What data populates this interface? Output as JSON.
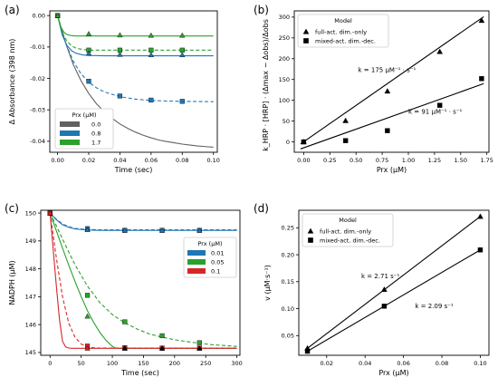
{
  "chart_data": [
    {
      "panel_label": "(a)",
      "type": "line",
      "xlabel": "Time (sec)",
      "ylabel": "Δ Absorbance (398 nm)",
      "xlim": [
        -0.005,
        0.1025
      ],
      "ylim": [
        -0.0435,
        0.0015
      ],
      "xticks": [
        "0.00",
        "0.02",
        "0.04",
        "0.06",
        "0.08",
        "0.10"
      ],
      "yticks": [
        "0.00",
        "-0.01",
        "-0.02",
        "-0.03",
        "-0.04"
      ],
      "legend": {
        "title": "Prx (μM)",
        "placement": "lower-left"
      },
      "series": [
        {
          "name": "0.0",
          "color": "#616161",
          "curve": {
            "x": [
              0,
              0.005,
              0.01,
              0.015,
              0.02,
              0.025,
              0.03,
              0.035,
              0.04,
              0.045,
              0.05,
              0.055,
              0.06,
              0.065,
              0.07,
              0.075,
              0.08,
              0.085,
              0.09,
              0.095,
              0.1
            ],
            "y": [
              0,
              -0.0085,
              -0.0155,
              -0.0207,
              -0.0248,
              -0.0281,
              -0.0306,
              -0.0327,
              -0.0345,
              -0.0359,
              -0.0371,
              -0.0381,
              -0.0389,
              -0.0396,
              -0.0401,
              -0.0405,
              -0.0409,
              -0.0412,
              -0.0415,
              -0.0417,
              -0.0419
            ]
          }
        },
        {
          "name": "0.8",
          "color": "#1f77b4",
          "curves": [
            {
              "dashed": false,
              "x": [
                0,
                0.003,
                0.006,
                0.009,
                0.012,
                0.016,
                0.02,
                0.03,
                0.05,
                0.1
              ],
              "y": [
                0,
                -0.0062,
                -0.0095,
                -0.0112,
                -0.012,
                -0.0125,
                -0.0127,
                -0.0128,
                -0.0128,
                -0.0128
              ]
            },
            {
              "dashed": true,
              "x": [
                0,
                0.005,
                0.01,
                0.015,
                0.02,
                0.025,
                0.03,
                0.04,
                0.05,
                0.06,
                0.07,
                0.08,
                0.1
              ],
              "y": [
                0,
                -0.0085,
                -0.0145,
                -0.0185,
                -0.0212,
                -0.023,
                -0.0243,
                -0.0258,
                -0.0266,
                -0.027,
                -0.0272,
                -0.0273,
                -0.0274
              ]
            }
          ],
          "markers": {
            "x": [
              0,
              0.02,
              0.04,
              0.06,
              0.08
            ],
            "y": [
              0,
              -0.0209,
              -0.0256,
              -0.0269,
              -0.0273
            ]
          }
        },
        {
          "name": "1.7",
          "color": "#2ca02c",
          "curves": [
            {
              "dashed": false,
              "x": [
                0,
                0.002,
                0.004,
                0.006,
                0.008,
                0.011,
                0.015,
                0.02,
                0.1
              ],
              "y": [
                0,
                -0.0035,
                -0.0053,
                -0.006,
                -0.0063,
                -0.0065,
                -0.0065,
                -0.0065,
                -0.0065
              ]
            },
            {
              "dashed": true,
              "x": [
                0,
                0.003,
                0.006,
                0.009,
                0.012,
                0.016,
                0.02,
                0.03,
                0.05,
                0.1
              ],
              "y": [
                0,
                -0.0053,
                -0.0082,
                -0.0096,
                -0.0104,
                -0.0108,
                -0.011,
                -0.011,
                -0.011,
                -0.011
              ]
            }
          ],
          "markers_triangle": {
            "x": [
              0,
              0.02,
              0.04,
              0.06,
              0.08
            ],
            "y": [
              0,
              -0.0058,
              -0.0062,
              -0.0063,
              -0.0063
            ]
          },
          "markers_square": {
            "x": [
              0,
              0.02,
              0.04,
              0.06,
              0.08
            ],
            "y": [
              0,
              -0.011,
              -0.011,
              -0.011,
              -0.011
            ]
          }
        },
        {
          "name": "",
          "color": "#1f77b4",
          "role": "0.8 triangle markers",
          "markers_triangle": {
            "x": [
              0.02,
              0.04,
              0.06,
              0.08
            ],
            "y": [
              -0.012,
              -0.0124,
              -0.0125,
              -0.0125
            ]
          }
        }
      ]
    },
    {
      "panel_label": "(b)",
      "type": "scatter",
      "xlabel": "Prx (μM)",
      "ylabel": "k_HRP · [HRP] · (Δmax − Δobs)/Δobs",
      "xlim": [
        -0.09,
        1.77
      ],
      "ylim": [
        -25,
        315
      ],
      "xticks": [
        "0.00",
        "0.25",
        "0.50",
        "0.75",
        "1.00",
        "1.25",
        "1.50",
        "1.75"
      ],
      "yticks": [
        "0",
        "50",
        "100",
        "150",
        "200",
        "250",
        "300"
      ],
      "legend": {
        "title": "Model",
        "placement": "top-left"
      },
      "series": [
        {
          "name": "full-act. dim.-only",
          "marker": "triangle",
          "x": [
            0,
            0.4,
            0.8,
            1.3,
            1.7
          ],
          "y": [
            0,
            51,
            122,
            217,
            292
          ],
          "fit": {
            "x": [
              -0.03,
              1.72
            ],
            "y": [
              -5,
              301
            ]
          }
        },
        {
          "name": "mixed-act. dim.-dec.",
          "marker": "square",
          "x": [
            0,
            0.4,
            0.8,
            1.3,
            1.7
          ],
          "y": [
            0,
            3,
            27,
            88,
            152
          ],
          "fit": {
            "x": [
              -0.03,
              1.72
            ],
            "y": [
              -17,
              140
            ]
          }
        }
      ],
      "annotations": [
        {
          "text": "k = 175 μM⁻¹ · s⁻¹",
          "x": 0.52,
          "y": 168
        },
        {
          "text": "k = 91 μM⁻¹ · s⁻¹",
          "x": 1.0,
          "y": 68
        }
      ]
    },
    {
      "panel_label": "(c)",
      "type": "line",
      "xlabel": "Time (sec)",
      "ylabel": "NADPH (μM)",
      "xlim": [
        -15,
        305
      ],
      "ylim": [
        144.9,
        150.1
      ],
      "xticks": [
        "0",
        "50",
        "100",
        "150",
        "200",
        "250",
        "300"
      ],
      "yticks": [
        "145",
        "146",
        "147",
        "148",
        "149",
        "150"
      ],
      "legend": {
        "title": "Prx (μM)",
        "placement": "right"
      },
      "series": [
        {
          "name": "0.01",
          "color": "#1f77b4",
          "curves": [
            {
              "dashed": false,
              "x": [
                0,
                10,
                20,
                30,
                40,
                60,
                80,
                300
              ],
              "y": [
                150,
                149.76,
                149.58,
                149.49,
                149.43,
                149.39,
                149.38,
                149.38
              ]
            },
            {
              "dashed": true,
              "x": [
                0,
                10,
                20,
                30,
                40,
                60,
                80,
                300
              ],
              "y": [
                150,
                149.78,
                149.61,
                149.51,
                149.45,
                149.41,
                149.4,
                149.4
              ]
            }
          ],
          "markers_triangle": {
            "x": [
              0,
              60,
              120,
              180,
              240
            ],
            "y": [
              150,
              149.4,
              149.38,
              149.38,
              149.38
            ]
          },
          "markers_square": {
            "x": [
              0,
              60,
              120,
              180,
              240
            ],
            "y": [
              150,
              149.44,
              149.38,
              149.38,
              149.38
            ]
          }
        },
        {
          "name": "0.05",
          "color": "#2ca02c",
          "curves": [
            {
              "dashed": false,
              "x": [
                0,
                10,
                20,
                30,
                40,
                50,
                60,
                70,
                80,
                90,
                100,
                105,
                110,
                300
              ],
              "y": [
                150,
                149.37,
                148.74,
                148.13,
                147.55,
                147.0,
                146.5,
                146.08,
                145.72,
                145.43,
                145.22,
                145.16,
                145.15,
                145.15
              ]
            },
            {
              "dashed": true,
              "x": [
                0,
                10,
                20,
                30,
                40,
                60,
                80,
                100,
                120,
                140,
                160,
                180,
                200,
                220,
                240,
                260,
                280,
                300
              ],
              "y": [
                150,
                149.55,
                149.07,
                148.6,
                148.15,
                147.38,
                146.79,
                146.36,
                146.06,
                145.84,
                145.66,
                145.55,
                145.46,
                145.39,
                145.33,
                145.28,
                145.25,
                145.22
              ]
            }
          ],
          "markers_triangle": {
            "x": [
              0,
              60
            ],
            "y": [
              150,
              146.3
            ]
          },
          "markers_square": {
            "x": [
              0,
              60,
              120,
              180,
              240
            ],
            "y": [
              150,
              147.05,
              146.1,
              145.6,
              145.35
            ]
          }
        },
        {
          "name": "0.1",
          "color": "#d62728",
          "curves": [
            {
              "dashed": false,
              "x": [
                0,
                5,
                10,
                15,
                20,
                25,
                30,
                35,
                300
              ],
              "y": [
                150,
                148.7,
                147.4,
                146.2,
                145.4,
                145.2,
                145.16,
                145.15,
                145.15
              ]
            },
            {
              "dashed": true,
              "x": [
                0,
                5,
                10,
                15,
                20,
                30,
                40,
                50,
                60,
                70,
                80,
                300
              ],
              "y": [
                150,
                149.2,
                148.4,
                147.7,
                147.0,
                146.05,
                145.55,
                145.3,
                145.2,
                145.17,
                145.16,
                145.16
              ]
            }
          ],
          "markers_triangle": {
            "x": [
              0,
              60,
              120,
              180,
              240
            ],
            "y": [
              150,
              145.15,
              145.15,
              145.15,
              145.15
            ]
          },
          "markers_square": {
            "x": [
              0,
              60,
              120,
              180,
              240
            ],
            "y": [
              150,
              145.23,
              145.17,
              145.16,
              145.16
            ]
          }
        },
        {
          "name": "",
          "color": "#000000",
          "role": "extra triangle markers",
          "markers_triangle": {
            "x": [
              120,
              180,
              240
            ],
            "y": [
              145.15,
              145.15,
              145.15
            ]
          }
        }
      ]
    },
    {
      "panel_label": "(d)",
      "type": "scatter",
      "xlabel": "Prx (μM)",
      "ylabel": "v (μM·s⁻¹)",
      "xlim": [
        0.0055,
        0.1045
      ],
      "ylim": [
        0.0135,
        0.2825
      ],
      "xticks": [
        "0.02",
        "0.04",
        "0.06",
        "0.08",
        "0.10"
      ],
      "yticks": [
        "0.05",
        "0.10",
        "0.15",
        "0.20",
        "0.25"
      ],
      "legend": {
        "title": "Model",
        "placement": "top-left"
      },
      "series": [
        {
          "name": "full-act. dim.-only",
          "marker": "triangle",
          "x": [
            0.01,
            0.05,
            0.1
          ],
          "y": [
            0.0265,
            0.1355,
            0.271
          ],
          "fit": {
            "x": [
              0.01,
              0.1
            ],
            "y": [
              0.0265,
              0.271
            ]
          }
        },
        {
          "name": "mixed-act. dim.-dec.",
          "marker": "square",
          "x": [
            0.01,
            0.05,
            0.1
          ],
          "y": [
            0.021,
            0.1045,
            0.209
          ],
          "fit": {
            "x": [
              0.01,
              0.1
            ],
            "y": [
              0.021,
              0.209
            ]
          }
        }
      ],
      "annotations": [
        {
          "text": "k = 2.71 s⁻¹",
          "x": 0.038,
          "y": 0.156
        },
        {
          "text": "k = 2.09 s⁻¹",
          "x": 0.066,
          "y": 0.101
        }
      ]
    }
  ]
}
